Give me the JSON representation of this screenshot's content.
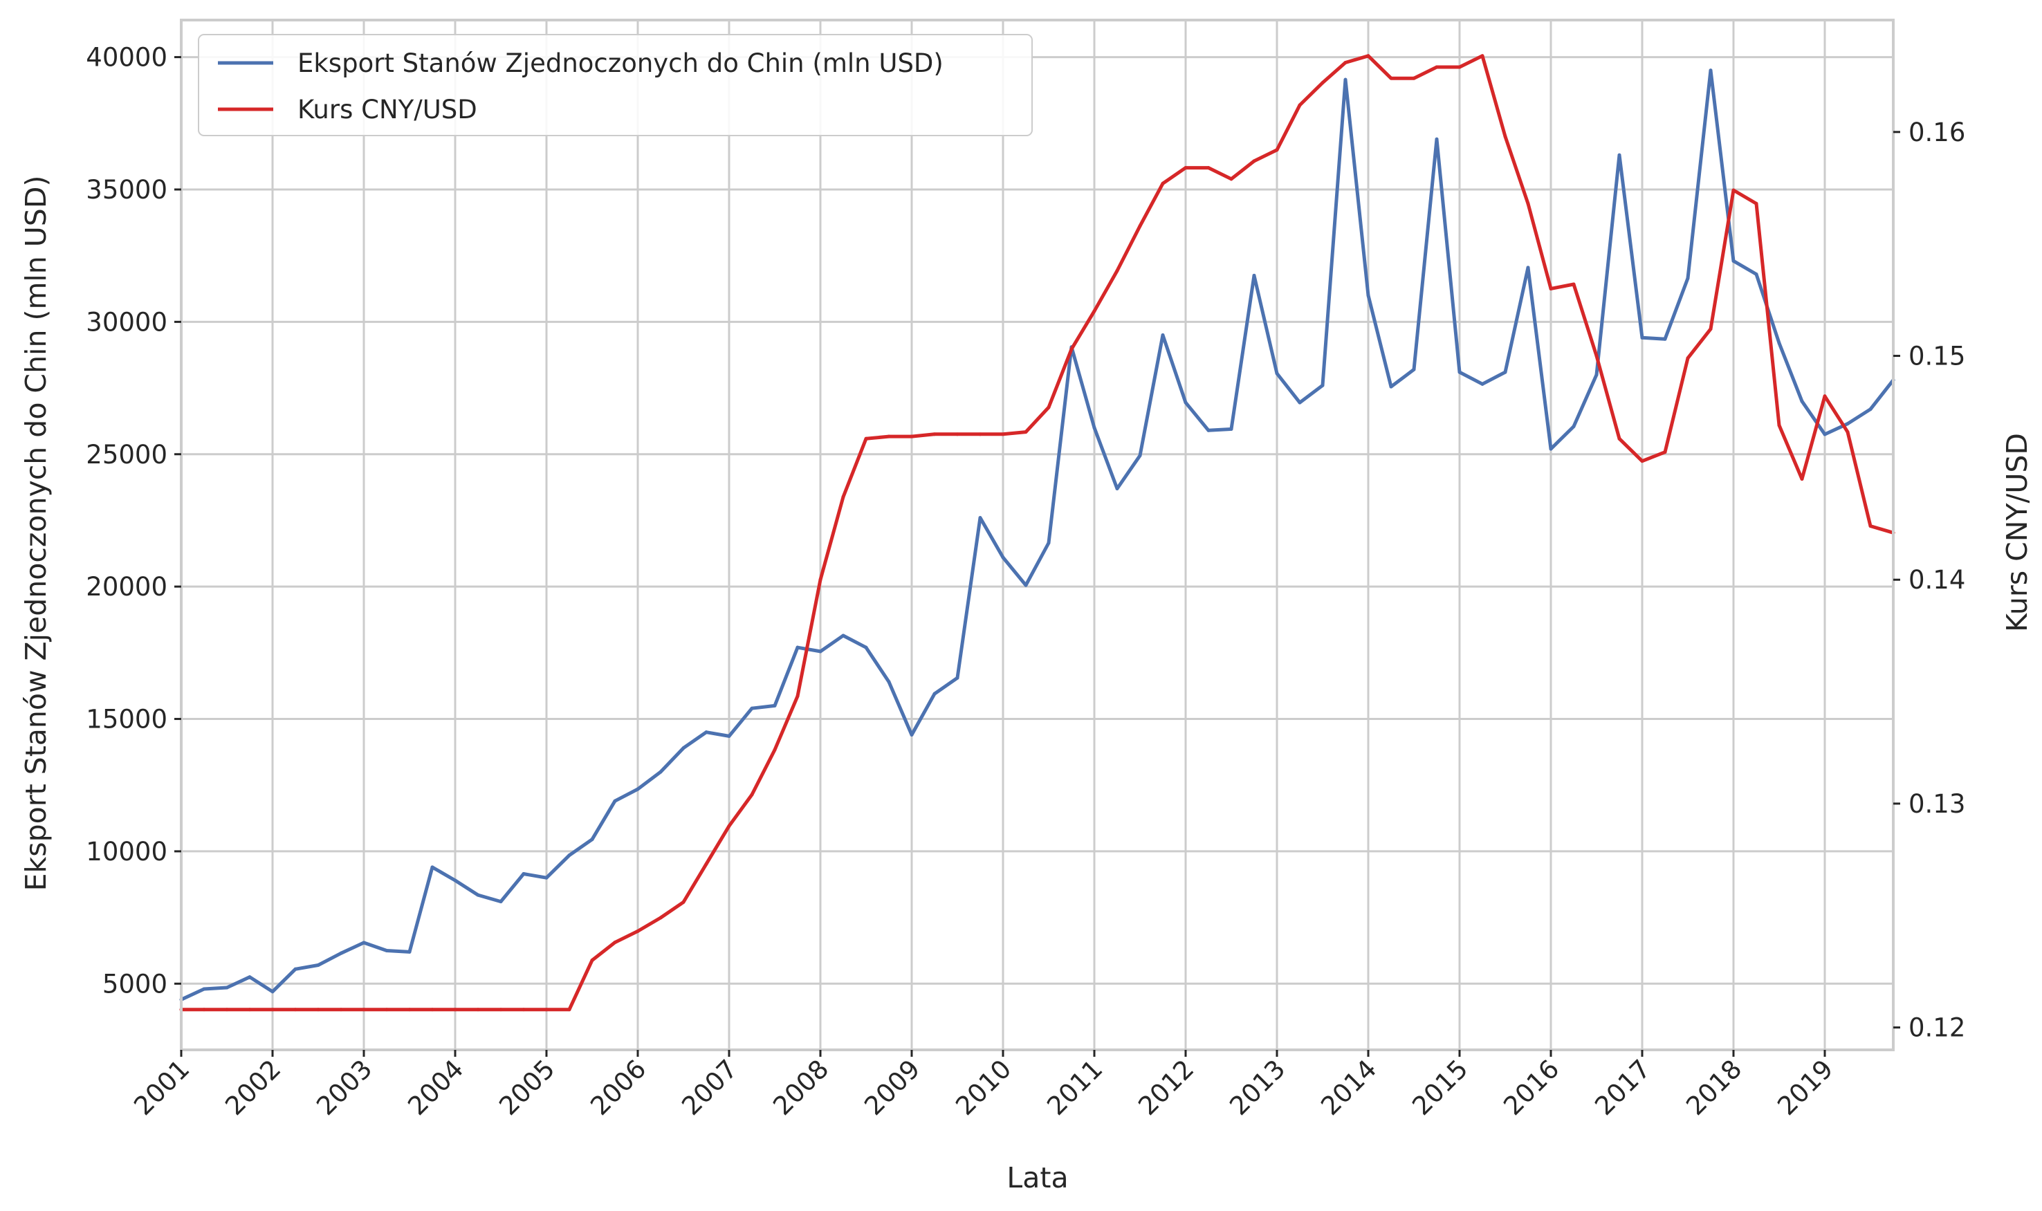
{
  "chart_data": {
    "type": "line",
    "xlabel": "Lata",
    "ylabel_left": "Eksport Stanów Zjednoczonych do Chin (mln USD)",
    "ylabel_right": "Kurs CNY/USD",
    "x_tick_labels": [
      "2001",
      "2002",
      "2003",
      "2004",
      "2005",
      "2006",
      "2007",
      "2008",
      "2009",
      "2010",
      "2011",
      "2012",
      "2013",
      "2014",
      "2015",
      "2016",
      "2017",
      "2018",
      "2019"
    ],
    "y_left_ticks": [
      5000,
      10000,
      15000,
      20000,
      25000,
      30000,
      35000,
      40000
    ],
    "y_right_ticks": [
      0.12,
      0.13,
      0.14,
      0.15,
      0.16
    ],
    "y_left_range": [
      2500,
      41400
    ],
    "y_right_range": [
      0.119,
      0.165
    ],
    "x_range": [
      2001.0,
      2019.75
    ],
    "grid": true,
    "legend_position": "top-left",
    "x": [
      2001.0,
      2001.25,
      2001.5,
      2001.75,
      2002.0,
      2002.25,
      2002.5,
      2002.75,
      2003.0,
      2003.25,
      2003.5,
      2003.75,
      2004.0,
      2004.25,
      2004.5,
      2004.75,
      2005.0,
      2005.25,
      2005.5,
      2005.75,
      2006.0,
      2006.25,
      2006.5,
      2006.75,
      2007.0,
      2007.25,
      2007.5,
      2007.75,
      2008.0,
      2008.25,
      2008.5,
      2008.75,
      2009.0,
      2009.25,
      2009.5,
      2009.75,
      2010.0,
      2010.25,
      2010.5,
      2010.75,
      2011.0,
      2011.25,
      2011.5,
      2011.75,
      2012.0,
      2012.25,
      2012.5,
      2012.75,
      2013.0,
      2013.25,
      2013.5,
      2013.75,
      2014.0,
      2014.25,
      2014.5,
      2014.75,
      2015.0,
      2015.25,
      2015.5,
      2015.75,
      2016.0,
      2016.25,
      2016.5,
      2016.75,
      2017.0,
      2017.25,
      2017.5,
      2017.75,
      2018.0,
      2018.25,
      2018.5,
      2018.75,
      2019.0,
      2019.25,
      2019.5,
      2019.75
    ],
    "series": [
      {
        "name": "Eksport Stanów Zjednoczonych do Chin (mln USD)",
        "axis": "left",
        "color": "#4c72b0",
        "values": [
          4400,
          4800,
          4850,
          5250,
          4700,
          5550,
          5700,
          6150,
          6550,
          6250,
          6200,
          9400,
          8900,
          8350,
          8100,
          9150,
          9000,
          9850,
          10450,
          11900,
          12350,
          13000,
          13900,
          14500,
          14350,
          15400,
          15500,
          17700,
          17550,
          18150,
          17700,
          16400,
          14400,
          15950,
          16550,
          22600,
          21100,
          20050,
          21650,
          29050,
          26000,
          23700,
          24950,
          29500,
          26950,
          25900,
          25950,
          31750,
          28050,
          26950,
          27600,
          39150,
          31000,
          27550,
          28200,
          36900,
          28100,
          27650,
          28100,
          32050,
          25200,
          26050,
          28000,
          36300,
          29400,
          29350,
          31650,
          39500,
          32300,
          31800,
          29200,
          27000,
          25750,
          26150,
          26700,
          27800
        ]
      },
      {
        "name": "Kurs CNY/USD",
        "axis": "right",
        "color": "#d62728",
        "values": [
          0.1208,
          0.1208,
          0.1208,
          0.1208,
          0.1208,
          0.1208,
          0.1208,
          0.1208,
          0.1208,
          0.1208,
          0.1208,
          0.1208,
          0.1208,
          0.1208,
          0.1208,
          0.1208,
          0.1208,
          0.1208,
          0.123,
          0.1238,
          0.1243,
          0.1249,
          0.1256,
          0.1273,
          0.129,
          0.1304,
          0.1324,
          0.1348,
          0.14,
          0.1437,
          0.1463,
          0.1464,
          0.1464,
          0.1465,
          0.1465,
          0.1465,
          0.1465,
          0.1466,
          0.1477,
          0.1503,
          0.152,
          0.1538,
          0.1558,
          0.1577,
          0.1584,
          0.1584,
          0.1579,
          0.1587,
          0.1592,
          0.1612,
          0.1622,
          0.1631,
          0.1634,
          0.1624,
          0.1624,
          0.1629,
          0.1629,
          0.1634,
          0.1598,
          0.1568,
          0.153,
          0.1532,
          0.15,
          0.1463,
          0.1453,
          0.1457,
          0.1499,
          0.1512,
          0.1574,
          0.1568,
          0.1469,
          0.1445,
          0.1482,
          0.1466,
          0.1424,
          0.1421
        ]
      }
    ]
  }
}
